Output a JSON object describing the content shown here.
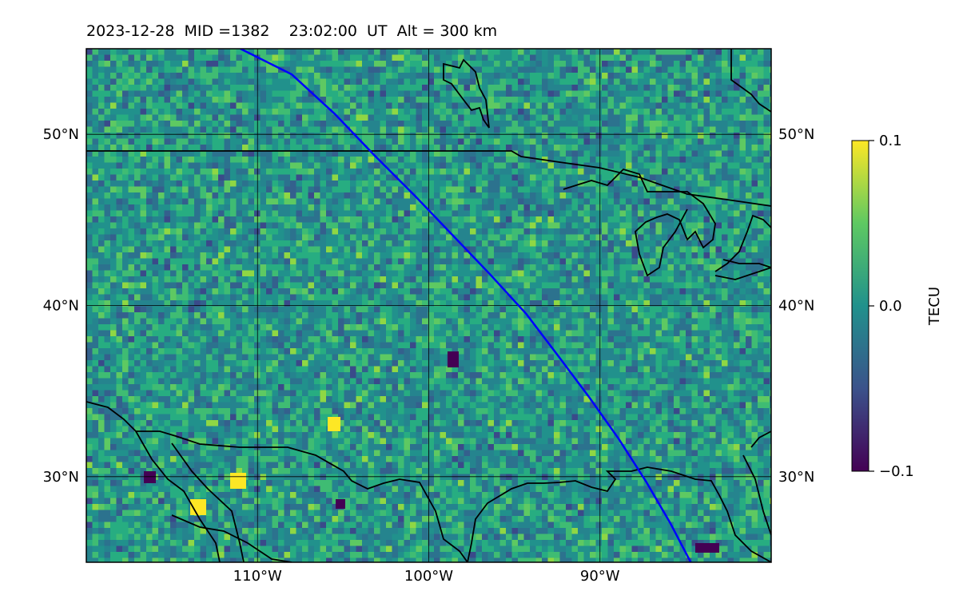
{
  "title": "2023-12-28  MID =1382    23:02:00  UT  Alt = 300 km",
  "map": {
    "lon_range": [
      -120,
      -80
    ],
    "lat_range": [
      25,
      55
    ],
    "lat_ticks": [
      {
        "value": 50,
        "label": "50°N"
      },
      {
        "value": 40,
        "label": "40°N"
      },
      {
        "value": 30,
        "label": "30°N"
      }
    ],
    "lon_ticks": [
      {
        "value": -110,
        "label": "110°W"
      },
      {
        "value": -100,
        "label": "100°W"
      },
      {
        "value": -90,
        "label": "90°W"
      }
    ],
    "grid": true,
    "colormap": "viridis",
    "track_color": "#0000ff",
    "track": [
      [
        -111.0,
        55.0
      ],
      [
        -108.0,
        53.5
      ],
      [
        -105.5,
        51.2
      ],
      [
        -103.2,
        48.8
      ],
      [
        -100.8,
        46.4
      ],
      [
        -98.6,
        44.1
      ],
      [
        -96.4,
        41.8
      ],
      [
        -94.3,
        39.5
      ],
      [
        -92.4,
        37.0
      ],
      [
        -90.6,
        34.6
      ],
      [
        -88.9,
        32.2
      ],
      [
        -87.3,
        29.7
      ],
      [
        -85.9,
        27.3
      ],
      [
        -84.7,
        25.0
      ]
    ]
  },
  "colorbar": {
    "label": "TECU",
    "ticks": [
      {
        "value": 0.1,
        "label": "0.1"
      },
      {
        "value": 0.0,
        "label": "0.0"
      },
      {
        "value": -0.1,
        "label": "−0.1"
      }
    ],
    "vmin": -0.1,
    "vmax": 0.1
  }
}
